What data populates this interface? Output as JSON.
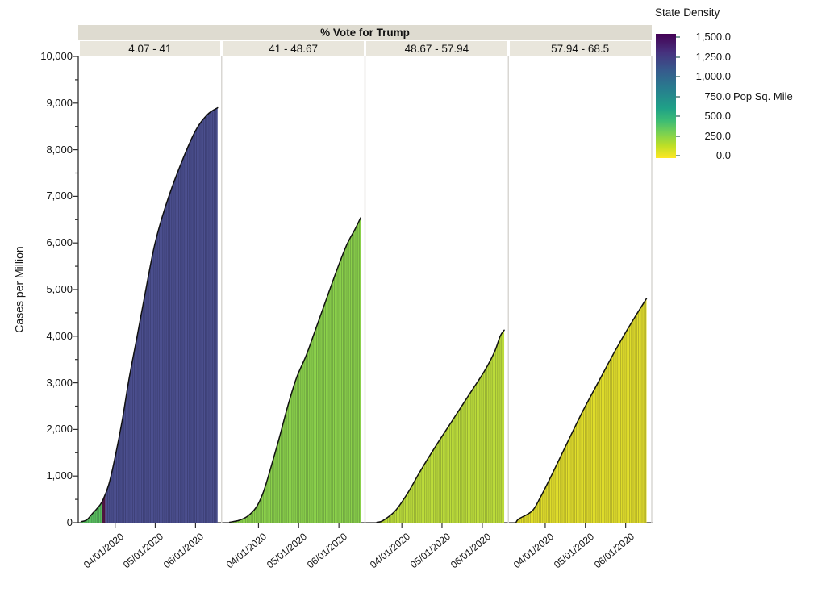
{
  "chart_data": {
    "type": "area",
    "facet_title": "% Vote for Trump",
    "ylabel": "Cases per Million",
    "ylim": [
      0,
      10000
    ],
    "grid": false,
    "legend_position": "right",
    "y_ticks": {
      "values": [
        0,
        1000,
        2000,
        3000,
        4000,
        5000,
        6000,
        7000,
        8000,
        9000,
        10000
      ],
      "labels": [
        "0",
        "1,000",
        "2,000",
        "3,000",
        "4,000",
        "5,000",
        "6,000",
        "7,000",
        "8,000",
        "9,000",
        "10,000"
      ],
      "minor_step": 500
    },
    "x_ticks": {
      "labels": [
        "04/01/2020",
        "05/01/2020",
        "06/01/2020"
      ],
      "fracs": [
        0.257,
        0.537,
        0.818
      ]
    },
    "facets": [
      {
        "label": "4.07 - 41",
        "fill": "#4b4f8e",
        "peak_cases_per_million": 8900,
        "color_segments": [
          {
            "end_frac": 0.165,
            "color": "#5abf5f"
          },
          {
            "end_frac": 0.188,
            "color": "#531843"
          },
          {
            "end_frac": 1.0,
            "color": "#4b4f8e"
          }
        ],
        "area_points": [
          [
            0.02,
            20
          ],
          [
            0.06,
            60
          ],
          [
            0.1,
            200
          ],
          [
            0.13,
            300
          ],
          [
            0.167,
            455
          ],
          [
            0.214,
            830
          ],
          [
            0.261,
            1465
          ],
          [
            0.308,
            2215
          ],
          [
            0.354,
            3080
          ],
          [
            0.411,
            4000
          ],
          [
            0.467,
            4925
          ],
          [
            0.533,
            5960
          ],
          [
            0.607,
            6770
          ],
          [
            0.701,
            7580
          ],
          [
            0.814,
            8385
          ],
          [
            0.9,
            8750
          ],
          [
            0.972,
            8900
          ]
        ]
      },
      {
        "label": "41 - 48.67",
        "fill": "#8bd14b",
        "peak_cases_per_million": 6540,
        "color_segments": [
          {
            "end_frac": 1.0,
            "color": "#8bd14b"
          }
        ],
        "area_points": [
          [
            0.055,
            10
          ],
          [
            0.12,
            50
          ],
          [
            0.18,
            140
          ],
          [
            0.24,
            330
          ],
          [
            0.29,
            660
          ],
          [
            0.34,
            1160
          ],
          [
            0.4,
            1810
          ],
          [
            0.46,
            2500
          ],
          [
            0.52,
            3100
          ],
          [
            0.59,
            3600
          ],
          [
            0.66,
            4200
          ],
          [
            0.73,
            4800
          ],
          [
            0.8,
            5400
          ],
          [
            0.87,
            5950
          ],
          [
            0.93,
            6300
          ],
          [
            0.968,
            6540
          ]
        ]
      },
      {
        "label": "48.67 - 57.94",
        "fill": "#bcdc3a",
        "peak_cases_per_million": 4130,
        "color_segments": [
          {
            "end_frac": 1.0,
            "color": "#bcdc3a"
          }
        ],
        "area_points": [
          [
            0.08,
            10
          ],
          [
            0.12,
            40
          ],
          [
            0.21,
            260
          ],
          [
            0.3,
            660
          ],
          [
            0.38,
            1090
          ],
          [
            0.49,
            1640
          ],
          [
            0.6,
            2160
          ],
          [
            0.72,
            2730
          ],
          [
            0.83,
            3250
          ],
          [
            0.9,
            3660
          ],
          [
            0.94,
            4000
          ],
          [
            0.968,
            4130
          ]
        ]
      },
      {
        "label": "57.94 - 68.5",
        "fill": "#e0dd2b",
        "peak_cases_per_million": 4810,
        "color_segments": [
          {
            "end_frac": 1.0,
            "color": "#e0dd2b"
          }
        ],
        "area_points": [
          [
            0.055,
            5
          ],
          [
            0.074,
            80
          ],
          [
            0.167,
            250
          ],
          [
            0.224,
            540
          ],
          [
            0.3,
            1000
          ],
          [
            0.41,
            1700
          ],
          [
            0.52,
            2390
          ],
          [
            0.64,
            3080
          ],
          [
            0.75,
            3710
          ],
          [
            0.86,
            4290
          ],
          [
            0.965,
            4810
          ]
        ]
      }
    ],
    "legend": {
      "title": "State Density",
      "unit_label": "Pop Sq. Mile",
      "tick_values": [
        1500,
        1250,
        1000,
        750,
        500,
        250,
        0
      ],
      "tick_labels": [
        "1,500.0",
        "1,250.0",
        "1,000.0",
        "750.0",
        "500.0",
        "250.0",
        "0.0"
      ],
      "gradient_top_to_bottom": [
        "#440154",
        "#46327e",
        "#365c8d",
        "#277f8e",
        "#1fa187",
        "#3dbc74",
        "#7ad151",
        "#bddf26",
        "#fde725"
      ]
    },
    "colors": {
      "header_title_bg": "#dedbd0",
      "header_cols_bg": "#e9e6dc",
      "panel_divider": "#d9d7d3",
      "axis": "#2e2e2e",
      "text": "#1a1a1a",
      "curve_stroke": "#111111",
      "bar_stripe": "rgba(10,10,30,0.22)"
    }
  }
}
